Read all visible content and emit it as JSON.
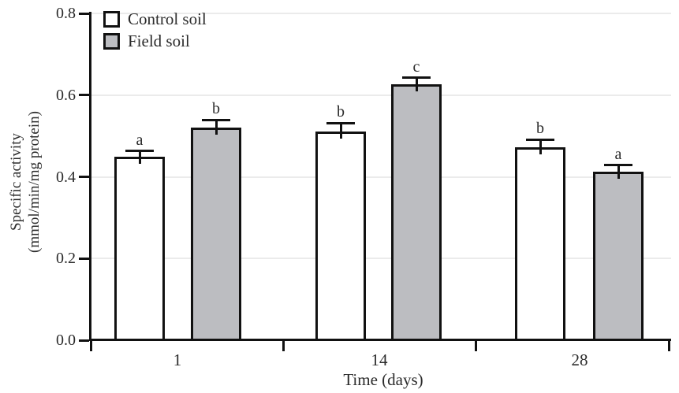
{
  "figure": {
    "background": "#ffffff",
    "kind": "grouped bar chart with error bars and significance letters"
  },
  "colors": {
    "axis": "#111111",
    "bar_border": "#111111",
    "control_fill": "#ffffff",
    "field_fill": "#bcbdc1",
    "gridline": "#ebebeb",
    "text": "#2b2b2b"
  },
  "chart_data": {
    "type": "bar",
    "title": "",
    "xlabel": "Time (days)",
    "ylabel": "Specific activity (mmol/min/mg protein)",
    "ylabel_lines": [
      "Specific activity",
      "(mmol/min/mg protein)"
    ],
    "categories": [
      "1",
      "14",
      "28"
    ],
    "series": [
      {
        "name": "Control soil",
        "fill": "#ffffff",
        "values": [
          0.45,
          0.51,
          0.473
        ],
        "errors": [
          0.013,
          0.022,
          0.018
        ],
        "letters": [
          "a",
          "b",
          "b"
        ]
      },
      {
        "name": "Field soil",
        "fill": "#bcbdc1",
        "values": [
          0.52,
          0.627,
          0.412
        ],
        "errors": [
          0.019,
          0.015,
          0.016
        ],
        "letters": [
          "b",
          "c",
          "a"
        ]
      }
    ],
    "ylim": [
      0.0,
      0.8
    ],
    "ytick_values": [
      0.0,
      0.2,
      0.4,
      0.6,
      0.8
    ],
    "ytick_labels": [
      "0.0",
      "0.2",
      "0.4",
      "0.6",
      "0.8"
    ],
    "grid": true,
    "error_bars": "upper only, capped",
    "legend_position": "top-left inside plot"
  }
}
